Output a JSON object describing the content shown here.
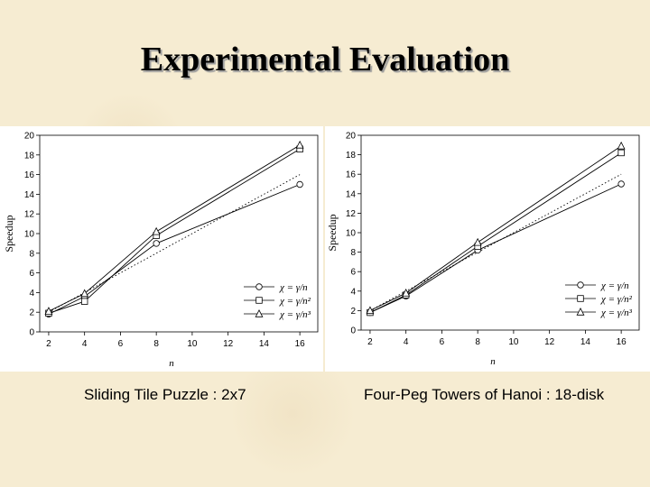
{
  "slide": {
    "title": "Experimental Evaluation"
  },
  "chart_data": [
    {
      "type": "line",
      "caption": "Sliding Tile Puzzle : 2x7",
      "xlabel": "n",
      "ylabel": "Speedup",
      "x_ticks": [
        2,
        4,
        6,
        8,
        10,
        12,
        14,
        16
      ],
      "y_ticks": [
        0,
        2,
        4,
        6,
        8,
        10,
        12,
        14,
        16,
        18,
        20
      ],
      "xlim": [
        1.5,
        17
      ],
      "ylim": [
        0,
        20
      ],
      "legend_position": "bottom-right",
      "reference_line": {
        "x": [
          2,
          16
        ],
        "y": [
          2,
          16
        ],
        "style": "dotted"
      },
      "series": [
        {
          "name": "χ = γ/n",
          "marker": "circle",
          "x": [
            2,
            4,
            8,
            16
          ],
          "y": [
            1.8,
            3.6,
            9.0,
            15.0
          ]
        },
        {
          "name": "χ = γ/n²",
          "marker": "square",
          "x": [
            2,
            4,
            8,
            16
          ],
          "y": [
            1.9,
            3.1,
            9.8,
            18.6
          ]
        },
        {
          "name": "χ = γ/n³",
          "marker": "triangle",
          "x": [
            2,
            4,
            8,
            16
          ],
          "y": [
            2.1,
            3.9,
            10.2,
            19.0
          ]
        }
      ]
    },
    {
      "type": "line",
      "caption": "Four-Peg Towers of Hanoi : 18-disk",
      "xlabel": "n",
      "ylabel": "Speedup",
      "x_ticks": [
        2,
        4,
        6,
        8,
        10,
        12,
        14,
        16
      ],
      "y_ticks": [
        0,
        2,
        4,
        6,
        8,
        10,
        12,
        14,
        16,
        18,
        20
      ],
      "xlim": [
        1.5,
        17
      ],
      "ylim": [
        0,
        20
      ],
      "legend_position": "bottom-right",
      "reference_line": {
        "x": [
          2,
          16
        ],
        "y": [
          2,
          16
        ],
        "style": "dotted"
      },
      "series": [
        {
          "name": "χ = γ/n",
          "marker": "circle",
          "x": [
            2,
            4,
            8,
            16
          ],
          "y": [
            1.8,
            3.5,
            8.2,
            15.0
          ]
        },
        {
          "name": "χ = γ/n²",
          "marker": "square",
          "x": [
            2,
            4,
            8,
            16
          ],
          "y": [
            1.8,
            3.6,
            8.6,
            18.2
          ]
        },
        {
          "name": "χ = γ/n³",
          "marker": "triangle",
          "x": [
            2,
            4,
            8,
            16
          ],
          "y": [
            2.0,
            3.8,
            9.0,
            18.9
          ]
        }
      ]
    }
  ]
}
